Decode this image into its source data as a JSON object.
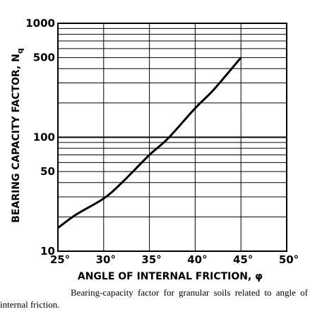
{
  "chart_data": {
    "type": "line",
    "xlabel": "ANGLE OF INTERNAL FRICTION, φ",
    "ylabel": "BEARING CAPACITY FACTOR, N",
    "ylabel_subscript": "q",
    "x_tick_labels": [
      "25°",
      "30°",
      "35°",
      "40°",
      "45°",
      "50°"
    ],
    "x_ticks": [
      25,
      30,
      35,
      40,
      45,
      50
    ],
    "y_tick_labels": [
      "10",
      "50",
      "100",
      "500",
      "1000"
    ],
    "y_ticks": [
      10,
      50,
      100,
      500,
      1000
    ],
    "y_scale": "log",
    "xlim": [
      25,
      50
    ],
    "ylim": [
      10,
      1000
    ],
    "grid": true,
    "series": [
      {
        "x": [
          25,
          27,
          30,
          32,
          35,
          37,
          40,
          42,
          45
        ],
        "y": [
          16,
          21,
          29,
          40,
          70,
          97,
          180,
          260,
          500
        ]
      }
    ]
  },
  "caption": "Bearing-capacity factor for granular soils related to angle of internal friction."
}
